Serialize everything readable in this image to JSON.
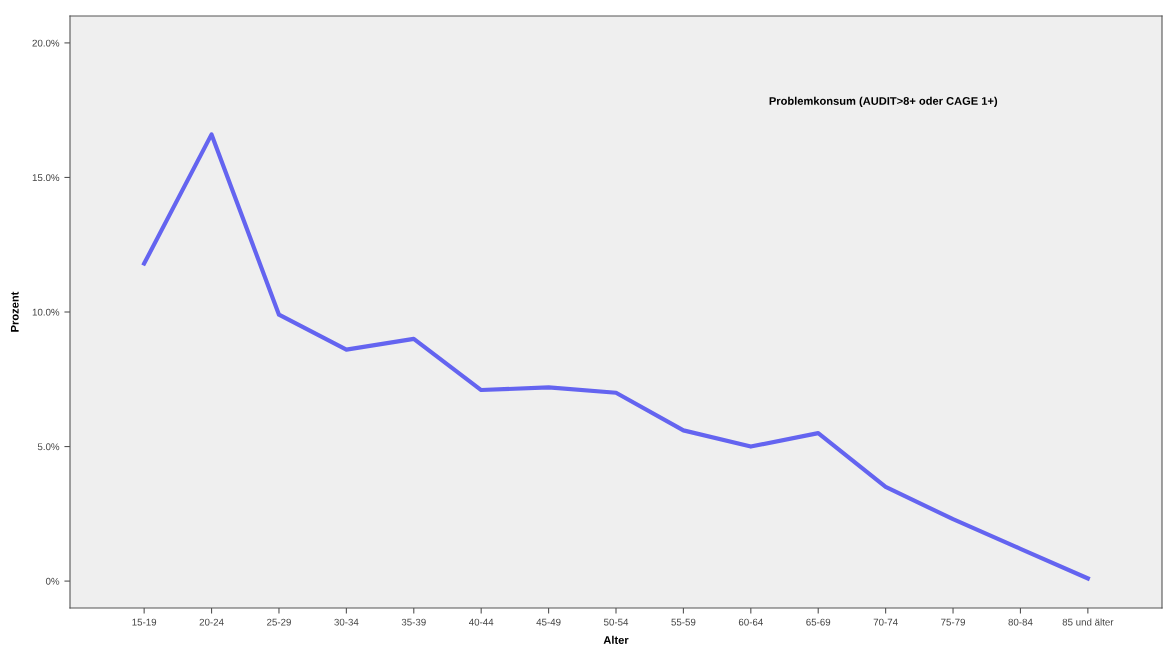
{
  "chart_data": {
    "type": "line",
    "xlabel": "Alter",
    "ylabel": "Prozent",
    "categories": [
      "15-19",
      "20-24",
      "25-29",
      "30-34",
      "35-39",
      "40-44",
      "45-49",
      "50-54",
      "55-59",
      "60-64",
      "65-69",
      "70-74",
      "75-79",
      "80-84",
      "85 und älter"
    ],
    "series": [
      {
        "color": "#6464f0",
        "values": [
          11.8,
          16.6,
          9.9,
          8.6,
          9.0,
          7.1,
          7.2,
          7.0,
          5.6,
          5.0,
          5.5,
          3.5,
          2.3,
          1.2,
          0.1
        ]
      }
    ],
    "ylim": [
      -1.0,
      21.0
    ],
    "yticks": [
      {
        "value": 0,
        "label": "0%"
      },
      {
        "value": 5,
        "label": "5.0%"
      },
      {
        "value": 10,
        "label": "10.0%"
      },
      {
        "value": 15,
        "label": "15.0%"
      },
      {
        "value": 20,
        "label": "20.0%"
      }
    ],
    "annotations": [
      "Problemkonsum (AUDIT>8+ oder CAGE 1+)"
    ],
    "grid": false,
    "marker": "none",
    "line_style": "solid"
  }
}
